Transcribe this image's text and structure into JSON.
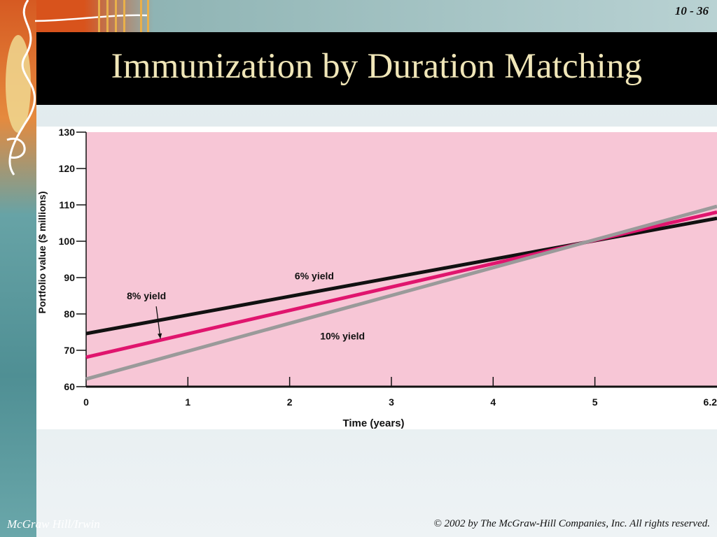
{
  "slide": {
    "number": "10 - 36",
    "title": "Immunization by Duration Matching",
    "footer_left": "McGraw Hill/Irwin",
    "footer_right": "© 2002 by The McGraw-Hill Companies, Inc. All rights reserved."
  },
  "colors": {
    "plot_background": "#f7c6d6",
    "title_text": "#f0e6b8",
    "title_bar": "#000000"
  },
  "chart_data": {
    "type": "line",
    "title": "",
    "xlabel": "Time (years)",
    "ylabel": "Portfolio value ($ millions)",
    "xlim": [
      0,
      6.2
    ],
    "ylim": [
      60,
      130
    ],
    "x_ticks": [
      0,
      1,
      2,
      3,
      4,
      5,
      6.2
    ],
    "y_ticks": [
      60,
      70,
      80,
      90,
      100,
      110,
      120,
      130
    ],
    "grid": false,
    "legend": "none",
    "series": [
      {
        "name": "6% yield",
        "x": [
          0,
          6.2
        ],
        "values": [
          74.6,
          106.3
        ],
        "color": "#111111"
      },
      {
        "name": "8% yield",
        "x": [
          0,
          6.2
        ],
        "values": [
          68.1,
          108.0
        ],
        "color": "#e0156e"
      },
      {
        "name": "10% yield",
        "x": [
          0,
          6.2
        ],
        "values": [
          62.1,
          109.6
        ],
        "color": "#9a9a9a"
      }
    ],
    "annotations": [
      {
        "text": "6% yield",
        "series": "6% yield",
        "x": 2.05,
        "y": 89.5
      },
      {
        "text": "8% yield",
        "series": "8% yield",
        "x": 0.4,
        "y": 84.0,
        "arrow_to": {
          "x": 0.73,
          "y": 73.2
        }
      },
      {
        "text": "10% yield",
        "series": "10% yield",
        "x": 2.3,
        "y": 73.0
      }
    ]
  }
}
